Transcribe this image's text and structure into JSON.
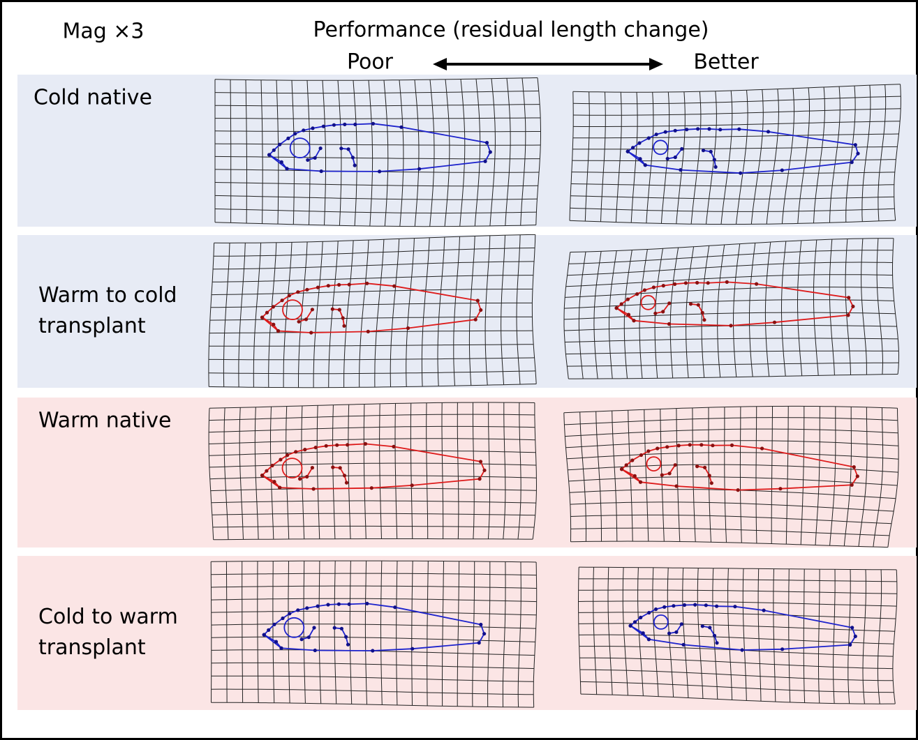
{
  "header": {
    "magnification": "Mag ×3",
    "title": "Performance (residual length change)",
    "left": "Poor",
    "right": "Better"
  },
  "rows": [
    {
      "label": [
        "Cold native"
      ]
    },
    {
      "label": [
        "Warm to cold",
        "transplant"
      ]
    },
    {
      "label": [
        "Warm native"
      ]
    },
    {
      "label": [
        "Cold to warm",
        "transplant"
      ]
    }
  ]
}
